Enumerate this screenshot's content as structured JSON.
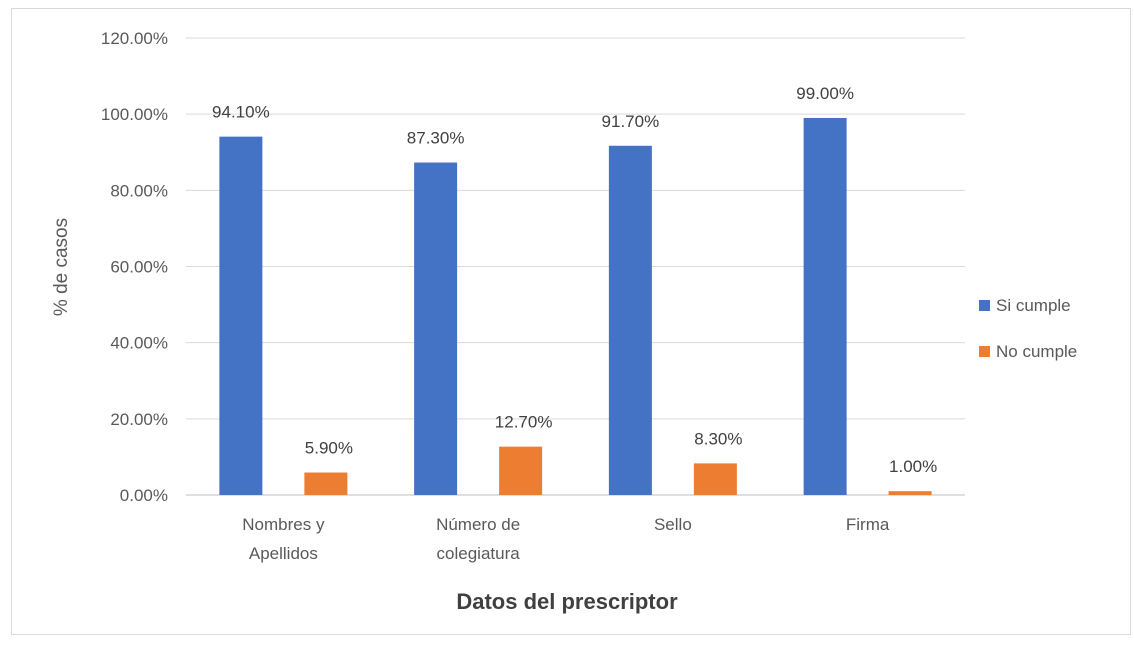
{
  "chart_data": {
    "type": "bar",
    "title": "",
    "xlabel": "Datos del prescriptor",
    "ylabel": "% de casos",
    "ylim": [
      0,
      120
    ],
    "yticks": [
      "0.00%",
      "20.00%",
      "40.00%",
      "60.00%",
      "80.00%",
      "100.00%",
      "120.00%"
    ],
    "grid": true,
    "legend_position": "right",
    "categories": [
      [
        "Nombres y",
        "Apellidos"
      ],
      [
        "Número de",
        "colegiatura"
      ],
      [
        "Sello"
      ],
      [
        "Firma"
      ]
    ],
    "series": [
      {
        "name": "Si cumple",
        "color": "#4472C4",
        "values": [
          94.1,
          87.3,
          91.7,
          99.0
        ],
        "labels": [
          "94.10%",
          "87.30%",
          "91.70%",
          "99.00%"
        ]
      },
      {
        "name": "No cumple",
        "color": "#ED7D31",
        "values": [
          5.9,
          12.7,
          8.3,
          1.0
        ],
        "labels": [
          "5.90%",
          "12.70%",
          "8.30%",
          "1.00%"
        ]
      }
    ]
  }
}
